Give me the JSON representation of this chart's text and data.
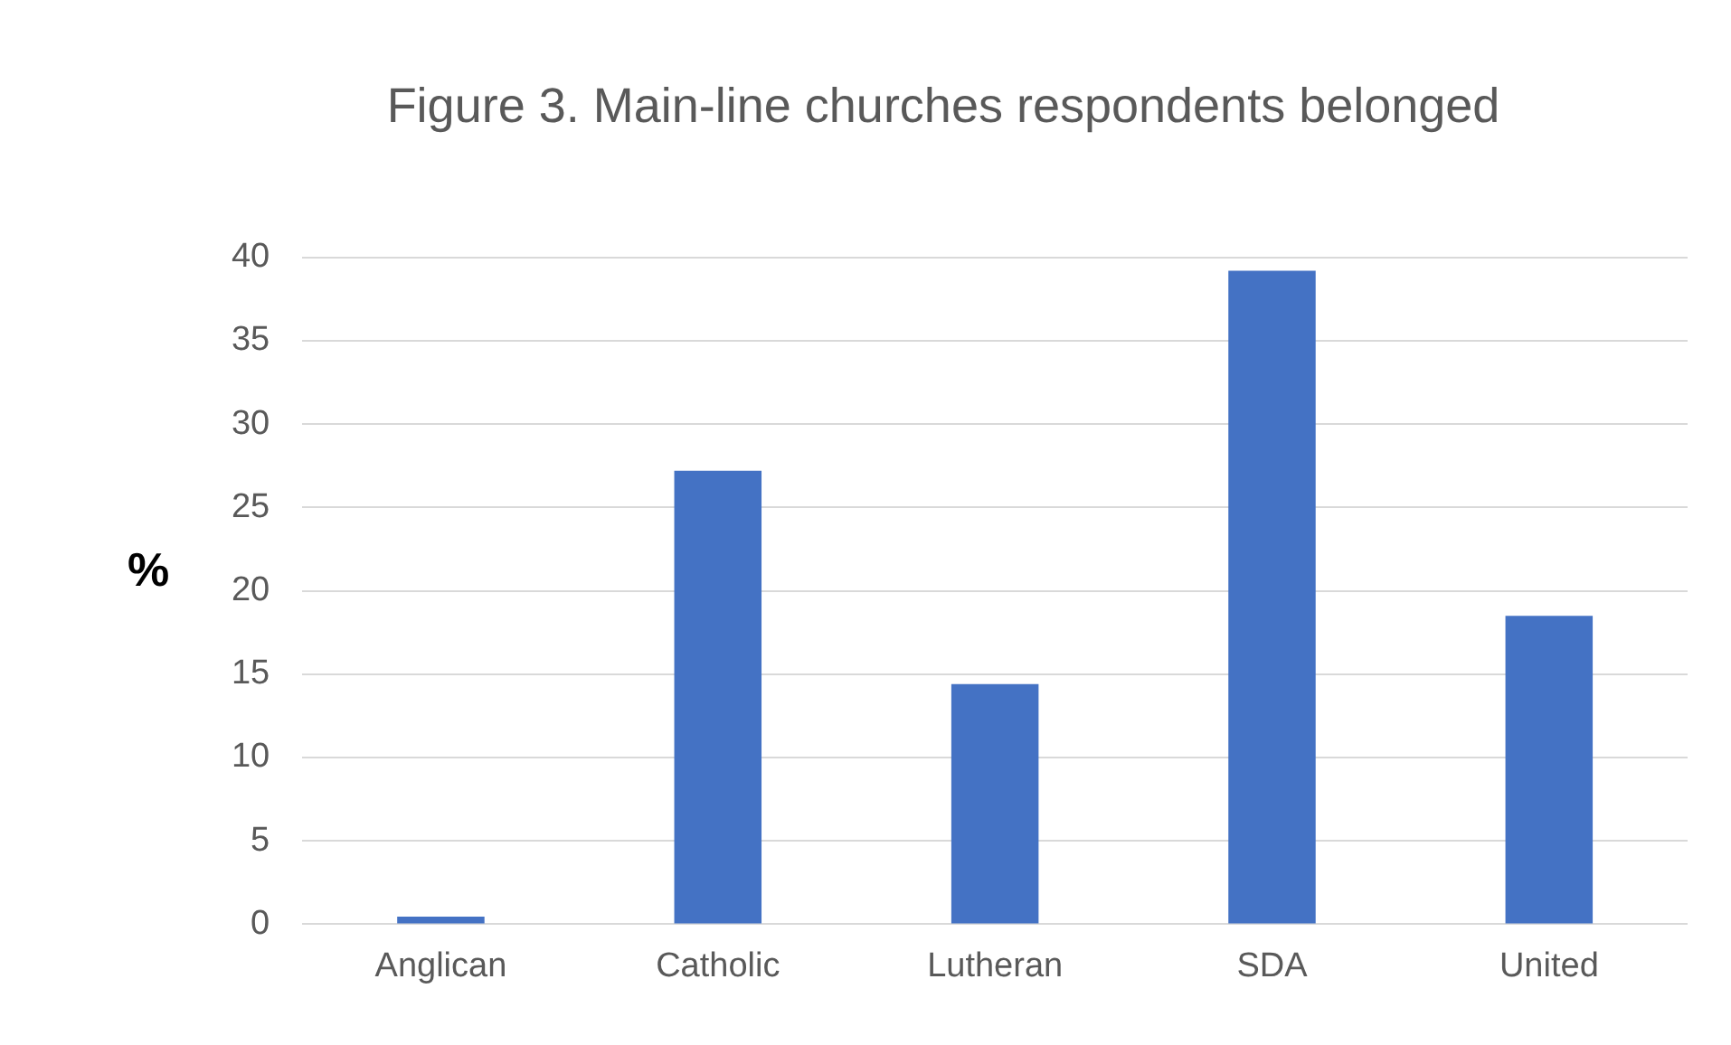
{
  "chart_data": {
    "type": "bar",
    "title": "Figure 3. Main-line churches respondents belonged",
    "ylabel": "%",
    "categories": [
      "Anglican",
      "Catholic",
      "Lutheran",
      "SDA",
      "United"
    ],
    "values": [
      0.45,
      27.2,
      14.4,
      39.2,
      18.5
    ],
    "color": "#4472c4",
    "ylim": [
      0,
      40
    ],
    "yticks": [
      0,
      5,
      10,
      15,
      20,
      25,
      30,
      35,
      40
    ],
    "grid": "y"
  }
}
